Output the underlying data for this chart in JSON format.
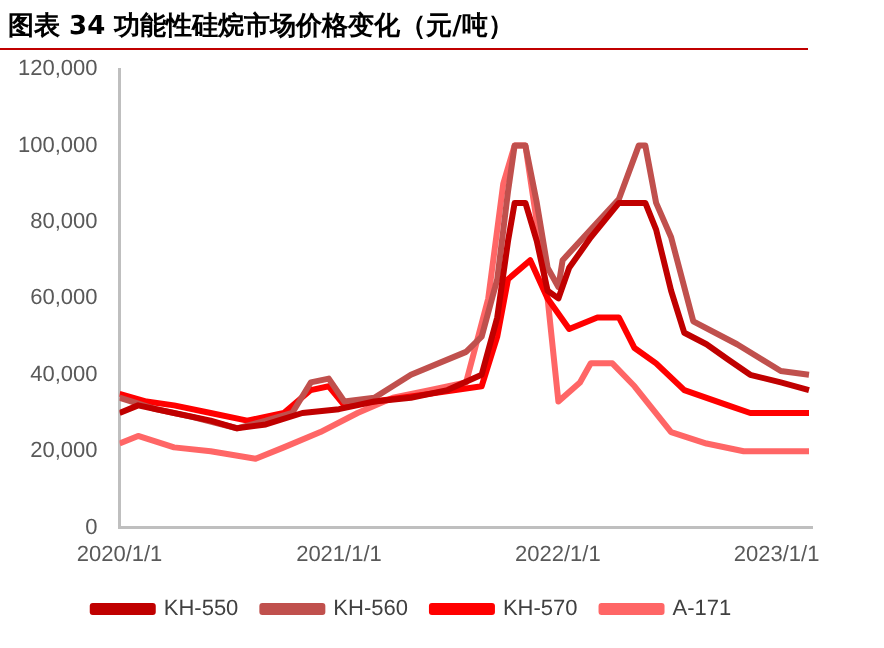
{
  "chart_data": {
    "type": "line",
    "title": "图表 34 功能性硅烷市场价格变化（元/吨）",
    "xlim": [
      "2020-01-01",
      "2023-03-01"
    ],
    "xticks": [
      {
        "value": "2020-01-01",
        "label": "2020/1/1"
      },
      {
        "value": "2021-01-01",
        "label": "2021/1/1"
      },
      {
        "value": "2022-01-01",
        "label": "2022/1/1"
      },
      {
        "value": "2023-01-01",
        "label": "2023/1/1"
      }
    ],
    "ylim": [
      0,
      120000
    ],
    "yticks": [
      {
        "value": 0,
        "label": "0"
      },
      {
        "value": 20000,
        "label": "20,000"
      },
      {
        "value": 40000,
        "label": "40,000"
      },
      {
        "value": 60000,
        "label": "60,000"
      },
      {
        "value": 80000,
        "label": "80,000"
      },
      {
        "value": 100000,
        "label": "100,000"
      },
      {
        "value": 120000,
        "label": "120,000"
      }
    ],
    "grid": false,
    "legend": "bottom",
    "marker": "none",
    "line_style": "solid",
    "series": [
      {
        "name": "KH-550",
        "color": "#c00000",
        "x": [
          "2020-01-01",
          "2020-02-01",
          "2020-04-01",
          "2020-06-01",
          "2020-07-15",
          "2020-09-01",
          "2020-11-01",
          "2021-01-01",
          "2021-03-01",
          "2021-05-01",
          "2021-07-01",
          "2021-08-27",
          "2021-09-22",
          "2021-10-10",
          "2021-10-21",
          "2021-11-08",
          "2021-11-27",
          "2021-12-15",
          "2022-01-02",
          "2022-01-20",
          "2022-02-25",
          "2022-04-13",
          "2022-05-27",
          "2022-06-14",
          "2022-07-09",
          "2022-07-31",
          "2022-09-06",
          "2022-10-12",
          "2022-11-18",
          "2023-01-08",
          "2023-02-24"
        ],
        "values": [
          30000,
          32000,
          30000,
          28000,
          26000,
          27000,
          30000,
          31000,
          33000,
          34000,
          36000,
          40000,
          55000,
          75000,
          85000,
          85000,
          75000,
          62000,
          60000,
          68000,
          76000,
          85000,
          85000,
          78000,
          62000,
          51000,
          48000,
          44000,
          40000,
          38000,
          36000
        ]
      },
      {
        "name": "KH-560",
        "color": "#c0504d",
        "x": [
          "2020-01-01",
          "2020-03-01",
          "2020-05-01",
          "2020-07-15",
          "2020-09-01",
          "2020-10-15",
          "2020-11-15",
          "2020-12-15",
          "2021-01-10",
          "2021-03-01",
          "2021-05-01",
          "2021-08-01",
          "2021-08-27",
          "2021-09-22",
          "2021-10-10",
          "2021-10-21",
          "2021-11-08",
          "2021-11-27",
          "2021-12-15",
          "2022-01-02",
          "2022-01-09",
          "2022-02-25",
          "2022-04-13",
          "2022-05-16",
          "2022-05-27",
          "2022-06-14",
          "2022-07-09",
          "2022-08-15",
          "2022-10-27",
          "2023-01-08",
          "2023-02-24"
        ],
        "values": [
          34000,
          31000,
          29000,
          26000,
          28000,
          30000,
          38000,
          39000,
          33000,
          34000,
          40000,
          46000,
          50000,
          65000,
          88000,
          100000,
          100000,
          85000,
          68000,
          63000,
          70000,
          78000,
          86000,
          100000,
          100000,
          85000,
          76000,
          54000,
          48000,
          41000,
          40000
        ]
      },
      {
        "name": "KH-570",
        "color": "#ff0000",
        "x": [
          "2020-01-01",
          "2020-02-15",
          "2020-04-01",
          "2020-06-01",
          "2020-08-01",
          "2020-10-01",
          "2020-11-15",
          "2020-12-15",
          "2021-01-10",
          "2021-03-01",
          "2021-06-01",
          "2021-08-27",
          "2021-09-22",
          "2021-10-10",
          "2021-11-16",
          "2021-12-15",
          "2022-01-20",
          "2022-03-08",
          "2022-04-13",
          "2022-05-09",
          "2022-06-14",
          "2022-07-31",
          "2022-10-12",
          "2022-11-18",
          "2023-02-24"
        ],
        "values": [
          35000,
          33000,
          32000,
          30000,
          28000,
          30000,
          36000,
          37000,
          32000,
          33000,
          35000,
          37000,
          50000,
          65000,
          70000,
          60000,
          52000,
          55000,
          55000,
          47000,
          43000,
          36000,
          32000,
          30000,
          30000
        ]
      },
      {
        "name": "A-171",
        "color": "#ff6666",
        "x": [
          "2020-01-01",
          "2020-02-01",
          "2020-04-01",
          "2020-06-01",
          "2020-08-15",
          "2020-10-01",
          "2020-12-01",
          "2021-02-01",
          "2021-04-01",
          "2021-06-01",
          "2021-08-01",
          "2021-09-07",
          "2021-10-02",
          "2021-10-21",
          "2021-11-08",
          "2021-11-27",
          "2021-12-15",
          "2022-01-02",
          "2022-02-07",
          "2022-02-25",
          "2022-04-02",
          "2022-05-09",
          "2022-07-09",
          "2022-09-06",
          "2022-11-07",
          "2023-02-24"
        ],
        "values": [
          22000,
          24000,
          21000,
          20000,
          18000,
          21000,
          25000,
          30000,
          34000,
          36000,
          38000,
          60000,
          90000,
          100000,
          100000,
          80000,
          60000,
          33000,
          38000,
          43000,
          43000,
          37000,
          25000,
          22000,
          20000,
          20000
        ]
      }
    ]
  }
}
